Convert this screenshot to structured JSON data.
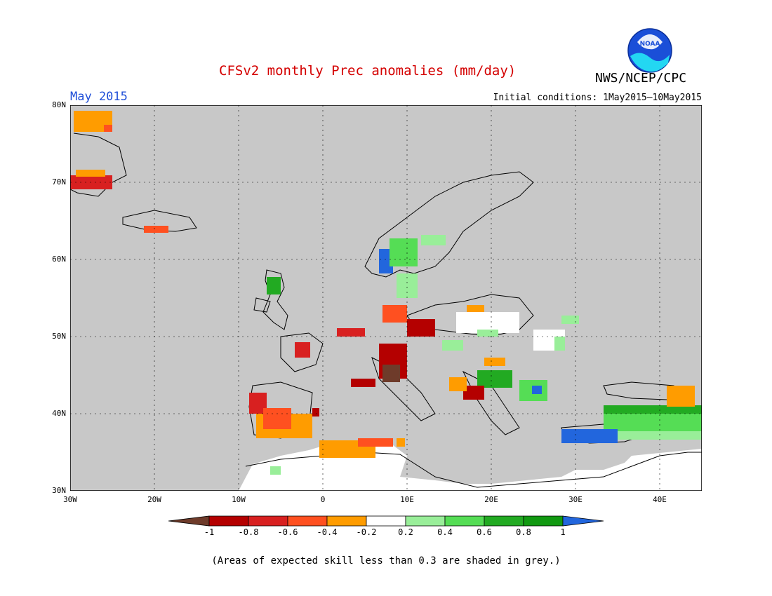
{
  "header": {
    "title": "CFSv2 monthly Prec anomalies (mm/day)",
    "month": "May 2015",
    "initial_conditions": "Initial conditions: 1May2015–10May2015",
    "agency": "NWS/NCEP/CPC",
    "logo_text": "NOAA"
  },
  "map": {
    "region": "Europe",
    "lon_range": [
      -30,
      45
    ],
    "lat_range": [
      30,
      80
    ],
    "land_color": "#c8c8c8",
    "lat_labels": [
      "80N",
      "70N",
      "60N",
      "50N",
      "40N",
      "30N"
    ],
    "lon_labels": [
      "30W",
      "20W",
      "10W",
      "0",
      "10E",
      "20E",
      "30E",
      "40E"
    ]
  },
  "legend": {
    "labels": [
      "-1",
      "-0.8",
      "-0.6",
      "-0.4",
      "-0.2",
      "0.2",
      "0.4",
      "0.6",
      "0.8",
      "1"
    ],
    "colors": [
      "#6e3b2a",
      "#b40000",
      "#d82020",
      "#ff5020",
      "#ff9c00",
      "#ffffff",
      "#99ee99",
      "#55dd55",
      "#22aa22",
      "#119911",
      "#2266dd"
    ]
  },
  "footnote": "(Areas of expected skill less than 0.3 are shaded in grey.)"
}
